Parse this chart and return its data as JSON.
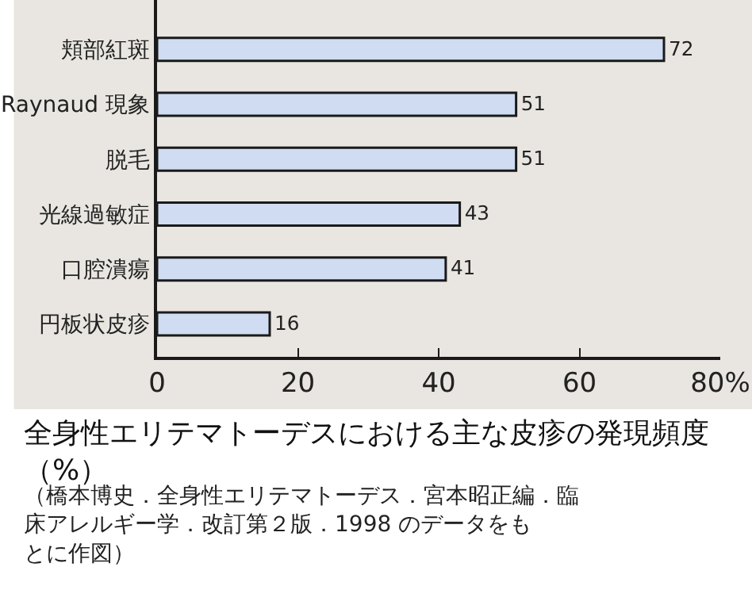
{
  "chart_data": {
    "type": "bar",
    "orientation": "horizontal",
    "title": "全身性エリテマトーデスにおける主な皮疹の発現頻度（%）",
    "annotations": [
      "（橋本博史．全身性エリテマトーデス．宮本昭正編．臨床アレルギー学．改訂第２版．1998 のデータをもとに作図）"
    ],
    "categories": [
      "頬部紅斑",
      "Raynaud 現象",
      "脱毛",
      "光線過敏症",
      "口腔潰瘍",
      "円板状皮疹"
    ],
    "values": [
      72,
      51,
      51,
      43,
      41,
      16
    ],
    "color": "#cfdcf2",
    "xlim": [
      0,
      80
    ],
    "xticks": [
      0,
      20,
      40,
      60,
      {
        "value": 80,
        "label": "80%"
      }
    ],
    "data_labels": true,
    "grid": false,
    "legend": false
  }
}
